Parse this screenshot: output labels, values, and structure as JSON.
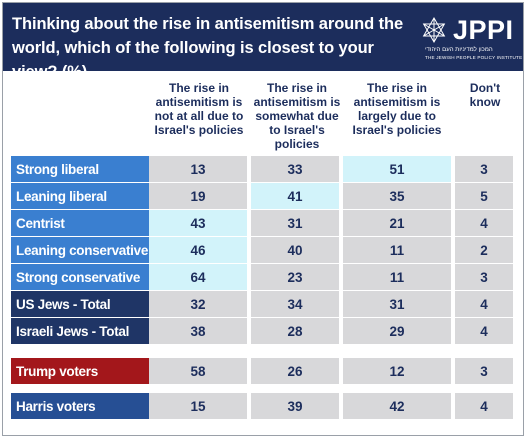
{
  "title": "Thinking about the rise in antisemitism around the world, which of the following is closest to your view? (%)",
  "logo": {
    "name": "JPPI",
    "hebrew": "המכון למדיניות העם היהודי",
    "english": "THE JEWISH PEOPLE POLICY INSTITUTE"
  },
  "colors": {
    "header": "#1c2d5c",
    "label_blue": "#3a7fd0",
    "label_navy": "#1f3566",
    "label_red": "#a3171b",
    "label_mid": "#264f94",
    "cell_gray": "#d8d8da",
    "cell_highlight": "#d2f3fa"
  },
  "chart_data": {
    "type": "table",
    "title": "Thinking about the rise in antisemitism around the world, which of the following is closest to your view? (%)",
    "columns": [
      "The rise in antisemitism is not at all due to Israel's policies",
      "The rise in antisemitism is somewhat due to Israel's policies",
      "The rise in antisemitism is largely due to Israel's policies",
      "Don't know"
    ],
    "rows": [
      {
        "label": "Strong liberal",
        "style": "blue",
        "values": [
          13,
          33,
          51,
          3
        ],
        "highlight": 2
      },
      {
        "label": "Leaning liberal",
        "style": "blue",
        "values": [
          19,
          41,
          35,
          5
        ],
        "highlight": 1
      },
      {
        "label": "Centrist",
        "style": "blue",
        "values": [
          43,
          31,
          21,
          4
        ],
        "highlight": 0
      },
      {
        "label": "Leaning conservative",
        "style": "blue",
        "values": [
          46,
          40,
          11,
          2
        ],
        "highlight": 0
      },
      {
        "label": "Strong conservative",
        "style": "blue",
        "values": [
          64,
          23,
          11,
          3
        ],
        "highlight": 0
      },
      {
        "label": "US Jews - Total",
        "style": "navy",
        "values": [
          32,
          34,
          31,
          4
        ],
        "highlight": null
      },
      {
        "label": "Israeli Jews - Total",
        "style": "navy",
        "values": [
          38,
          28,
          29,
          4
        ],
        "highlight": null
      },
      {
        "label": "Trump voters",
        "style": "red",
        "values": [
          58,
          26,
          12,
          3
        ],
        "highlight": null
      },
      {
        "label": "Harris voters",
        "style": "mid",
        "values": [
          15,
          39,
          42,
          4
        ],
        "highlight": null
      }
    ]
  }
}
